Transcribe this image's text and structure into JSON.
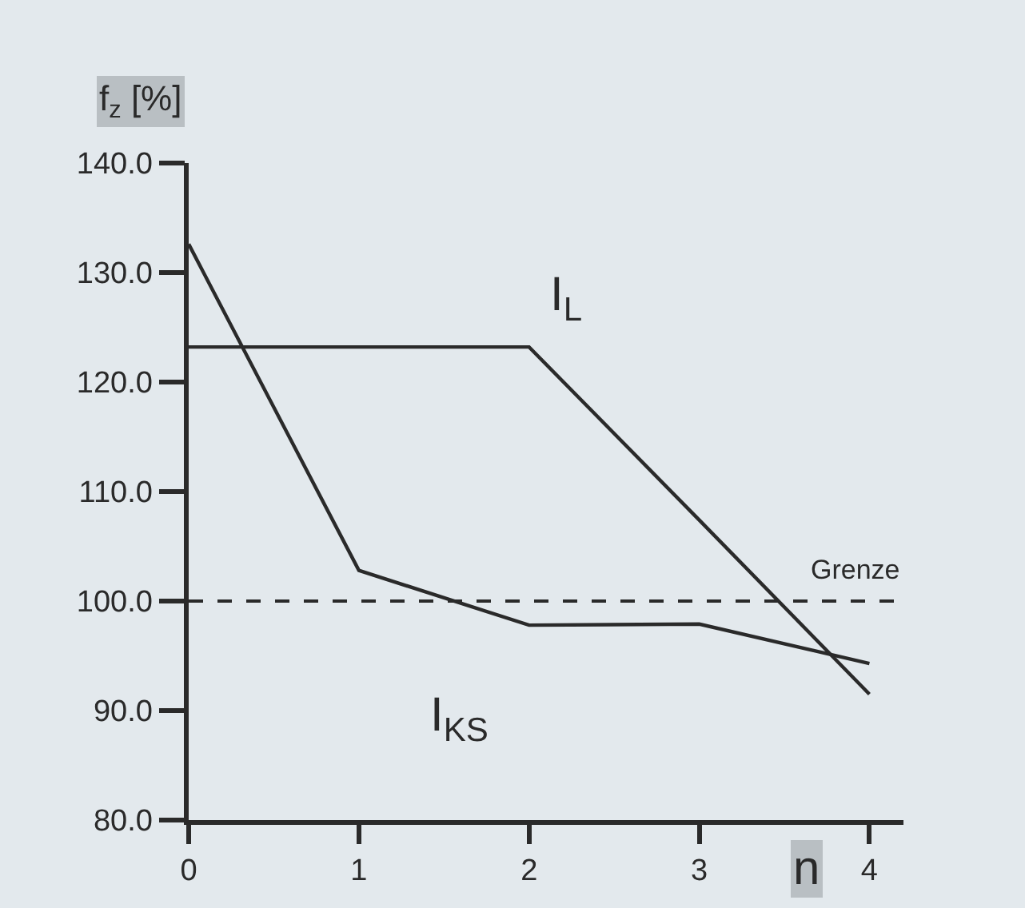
{
  "chart_data": {
    "type": "line",
    "xlabel": "n",
    "ylabel": "f$_{z}$ [%]",
    "x": [
      0,
      1,
      2,
      3,
      4
    ],
    "series": [
      {
        "name": "I$_{KS}$",
        "color": "#2a2a2a",
        "values": [
          132.6,
          102.8,
          97.8,
          97.9,
          94.3
        ]
      },
      {
        "name": "I$_{L}$",
        "color": "#2a2a2a",
        "values": [
          123.2,
          123.2,
          123.2,
          107.4,
          91.5
        ]
      }
    ],
    "ref_lines": [
      {
        "axis": "y",
        "value": 100,
        "label": "Grenze",
        "color": "#2a2a2a",
        "line_style": "dashed"
      }
    ],
    "xlim": [
      0,
      4.2
    ],
    "ylim": [
      80,
      140
    ],
    "xticks": [
      0,
      1,
      2,
      3,
      4
    ],
    "yticks": [
      {
        "value": 80,
        "label": "80.0"
      },
      {
        "value": 90,
        "label": "90.0"
      },
      {
        "value": 100,
        "label": "100.0"
      },
      {
        "value": 110,
        "label": "110.0"
      },
      {
        "value": 120,
        "label": "120.0"
      },
      {
        "value": 130,
        "label": "130.0"
      },
      {
        "value": 140,
        "label": "140.0"
      }
    ],
    "grid": false,
    "legend": false,
    "marker": "none",
    "line_style": "solid"
  }
}
